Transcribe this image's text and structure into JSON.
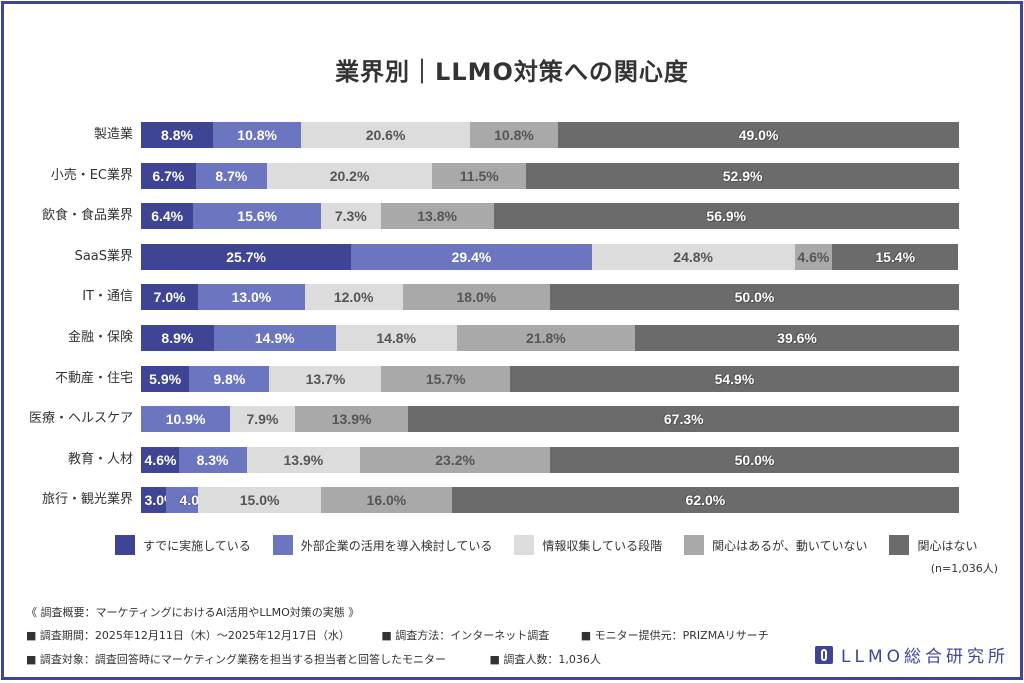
{
  "chart_data": {
    "type": "bar",
    "orientation": "horizontal",
    "stacked": "percent",
    "title": "業界別｜LLMO対策への関心度",
    "categories": [
      "製造業",
      "小売・EC業界",
      "飲食・食品業界",
      "SaaS業界",
      "IT・通信",
      "金融・保険",
      "不動産・住宅",
      "医療・ヘルスケア",
      "教育・人材",
      "旅行・観光業界"
    ],
    "series": [
      {
        "name": "すでに実施している",
        "color": "#3f4594",
        "values": [
          8.8,
          6.7,
          6.4,
          25.7,
          7.0,
          8.9,
          5.9,
          0,
          4.6,
          3.0
        ]
      },
      {
        "name": "外部企業の活用を導入検討している",
        "color": "#6c75bf",
        "values": [
          10.8,
          8.7,
          15.6,
          29.4,
          13.0,
          14.9,
          9.8,
          10.9,
          8.3,
          4.0
        ]
      },
      {
        "name": "情報収集している段階",
        "color": "#dcdcdc",
        "values": [
          20.6,
          20.2,
          7.3,
          24.8,
          12.0,
          14.8,
          13.7,
          7.9,
          13.9,
          15.0
        ]
      },
      {
        "name": "関心はあるが、動いていない",
        "color": "#a9a9a9",
        "values": [
          10.8,
          11.5,
          13.8,
          4.6,
          18.0,
          21.8,
          15.7,
          13.9,
          23.2,
          16.0
        ]
      },
      {
        "name": "関心はない",
        "color": "#6b6b6b",
        "values": [
          49.0,
          52.9,
          56.9,
          15.4,
          50.0,
          39.6,
          54.9,
          67.3,
          50.0,
          62.0
        ]
      }
    ],
    "xlim": [
      0,
      100
    ],
    "legend_position": "bottom",
    "grid": false,
    "note": "(n=1,036人)"
  },
  "footer": {
    "heading": "《 調査概要：マーケティングにおけるAI活用やLLMO対策の実態 》",
    "period": "■ 調査期間：2025年12月11日（木）～2025年12月17日（水）",
    "method": "■ 調査方法：インターネット調査",
    "provider": "■ モニター提供元：PRIZMAリサーチ",
    "target": "■ 調査対象：調査回答時にマーケティング業務を担当する担当者と回答したモニター",
    "count": "■ 調査人数：1,036人"
  },
  "logo": "LLMO総合研究所"
}
